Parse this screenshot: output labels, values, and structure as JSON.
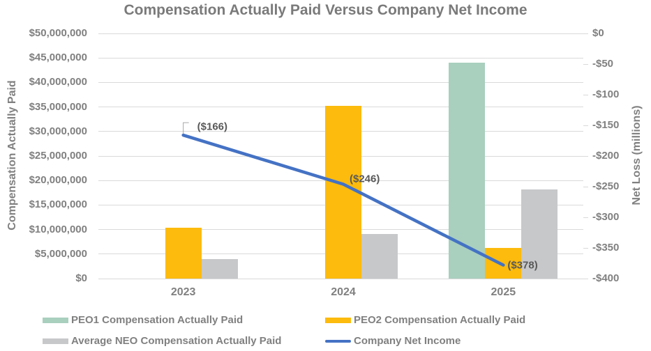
{
  "title": "Compensation Actually Paid Versus Company Net Income",
  "colors": {
    "green": "#A9CFBE",
    "yellow": "#FCBB0D",
    "gray": "#C7C8CA",
    "blue": "#4472C4",
    "gridline": "#D9D9D9",
    "axis_text": "#808080",
    "title_text": "#7A7A7A",
    "data_label_text": "#595959",
    "leader_line": "#A6A6A6"
  },
  "chart_data": {
    "type": "combo-bar-line",
    "categories": [
      "2023",
      "2024",
      "2025"
    ],
    "series": [
      {
        "name": "PEO1 Compensation Actually Paid",
        "type": "bar",
        "color": "green",
        "axis": "left",
        "values": [
          null,
          null,
          44000000
        ]
      },
      {
        "name": "PEO2 Compensation Actually Paid",
        "type": "bar",
        "color": "yellow",
        "axis": "left",
        "values": [
          10400000,
          35200000,
          6200000
        ]
      },
      {
        "name": "Average NEO Compensation Actually Paid",
        "type": "bar",
        "color": "gray",
        "axis": "left",
        "values": [
          4000000,
          9100000,
          18200000
        ]
      },
      {
        "name": "Company Net Income",
        "type": "line",
        "color": "blue",
        "axis": "right",
        "values": [
          -166,
          -246,
          -378
        ],
        "point_labels": [
          "($166)",
          "($246)",
          "($378)"
        ]
      }
    ],
    "left_axis": {
      "title": "Compensation Actually Paid",
      "min": 0,
      "max": 50000000,
      "step": 5000000,
      "tick_labels": [
        "$50,000,000",
        "$45,000,000",
        "$40,000,000",
        "$35,000,000",
        "$30,000,000",
        "$25,000,000",
        "$20,000,000",
        "$15,000,000",
        "$10,000,000",
        "$5,000,000",
        "$0"
      ]
    },
    "right_axis": {
      "title": "Net Loss (millions)",
      "min": -400,
      "max": 0,
      "step": 50,
      "tick_labels": [
        "$0",
        "-$50",
        "-$100",
        "-$150",
        "-$200",
        "-$250",
        "-$300",
        "-$350",
        "-$400"
      ]
    },
    "grid": true,
    "legend_position": "bottom"
  }
}
